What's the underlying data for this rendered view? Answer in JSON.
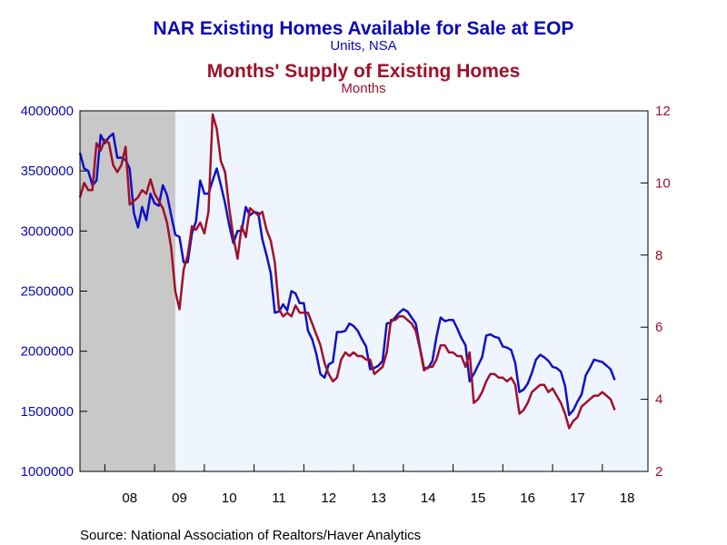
{
  "chart_data": {
    "type": "line",
    "title": "NAR Existing Homes Available for Sale at EOP",
    "title_units": "Units, NSA",
    "subtitle": "Months' Supply of Existing Homes",
    "subtitle_units": "Months",
    "source": "Source:  National Association of Realtors/Haver Analytics",
    "x_tick_labels": [
      "08",
      "09",
      "10",
      "11",
      "12",
      "13",
      "14",
      "15",
      "16",
      "17",
      "18"
    ],
    "x_range": [
      2007.5,
      2018.9167
    ],
    "left_axis": {
      "ylim": [
        1000000,
        4000000
      ],
      "ticks": [
        "1000000",
        "1500000",
        "2000000",
        "2500000",
        "3000000",
        "3500000",
        "4000000"
      ]
    },
    "right_axis": {
      "ylim": [
        2,
        12
      ],
      "ticks": [
        "2",
        "4",
        "6",
        "8",
        "10",
        "12"
      ]
    },
    "recession_shading": [
      2007.5,
      2009.4167
    ],
    "colors": {
      "inventory": "#1010c8",
      "months_supply": "#a0102a",
      "shading": "#c8c8c8",
      "plot_bg": "#eef5ff"
    },
    "series": [
      {
        "axis": "left",
        "start": 2007.5,
        "step_months": 1,
        "values": [
          3650000,
          3520000,
          3500000,
          3380000,
          3420000,
          3800000,
          3730000,
          3780000,
          3810000,
          3610000,
          3610000,
          3590000,
          3520000,
          3150000,
          3030000,
          3200000,
          3090000,
          3310000,
          3230000,
          3210000,
          3380000,
          3300000,
          3130000,
          2970000,
          2950000,
          2740000,
          2740000,
          2980000,
          3080000,
          3420000,
          3310000,
          3310000,
          3420000,
          3520000,
          3380000,
          3230000,
          3050000,
          2900000,
          3000000,
          3000000,
          3200000,
          3130000,
          3160000,
          3150000,
          2930000,
          2800000,
          2650000,
          2320000,
          2330000,
          2390000,
          2340000,
          2500000,
          2480000,
          2400000,
          2400000,
          2170000,
          2100000,
          1980000,
          1810000,
          1780000,
          1890000,
          1910000,
          2160000,
          2160000,
          2170000,
          2230000,
          2210000,
          2170000,
          2100000,
          2040000,
          1850000,
          1860000,
          1880000,
          1920000,
          2230000,
          2240000,
          2280000,
          2320000,
          2350000,
          2330000,
          2280000,
          2230000,
          2030000,
          1860000,
          1860000,
          1920000,
          2120000,
          2280000,
          2250000,
          2260000,
          2260000,
          2190000,
          2110000,
          2050000,
          1750000,
          1810000,
          1880000,
          1950000,
          2130000,
          2140000,
          2120000,
          2110000,
          2040000,
          2030000,
          2010000,
          1900000,
          1660000,
          1680000,
          1730000,
          1820000,
          1930000,
          1970000,
          1950000,
          1920000,
          1870000,
          1860000,
          1830000,
          1710000,
          1470000,
          1510000,
          1580000,
          1640000,
          1800000,
          1860000,
          1930000,
          1920000,
          1910000,
          1880000,
          1850000,
          1760000
        ]
      },
      {
        "axis": "right",
        "start": 2007.5,
        "step_months": 1,
        "values": [
          9.6,
          10.0,
          9.8,
          9.8,
          11.1,
          10.9,
          11.2,
          11.1,
          10.5,
          10.3,
          10.5,
          11.0,
          9.4,
          9.5,
          9.6,
          9.8,
          9.7,
          10.1,
          9.7,
          9.5,
          9.3,
          8.9,
          8.2,
          7.0,
          6.5,
          7.6,
          8.0,
          8.8,
          8.7,
          8.9,
          8.6,
          9.2,
          11.9,
          11.5,
          10.6,
          10.3,
          9.3,
          8.5,
          7.9,
          8.8,
          8.5,
          9.3,
          9.2,
          9.1,
          9.2,
          8.7,
          8.4,
          7.8,
          6.5,
          6.3,
          6.4,
          6.3,
          6.6,
          6.4,
          6.4,
          6.4,
          6.1,
          5.8,
          5.5,
          5.0,
          4.7,
          4.5,
          4.6,
          5.1,
          5.3,
          5.2,
          5.3,
          5.2,
          5.2,
          5.1,
          5.1,
          4.7,
          4.8,
          4.9,
          5.3,
          6.2,
          6.2,
          6.3,
          6.3,
          6.2,
          6.1,
          5.9,
          5.4,
          4.8,
          4.9,
          4.9,
          5.1,
          5.5,
          5.5,
          5.3,
          5.3,
          5.2,
          5.2,
          4.9,
          5.3,
          3.9,
          4.0,
          4.2,
          4.5,
          4.7,
          4.7,
          4.6,
          4.6,
          4.5,
          4.6,
          4.4,
          3.6,
          3.7,
          3.9,
          4.2,
          4.3,
          4.4,
          4.4,
          4.2,
          4.3,
          4.1,
          3.9,
          3.6,
          3.2,
          3.4,
          3.5,
          3.8,
          3.9,
          4.0,
          4.1,
          4.1,
          4.2,
          4.1,
          4.0,
          3.7
        ]
      }
    ]
  }
}
